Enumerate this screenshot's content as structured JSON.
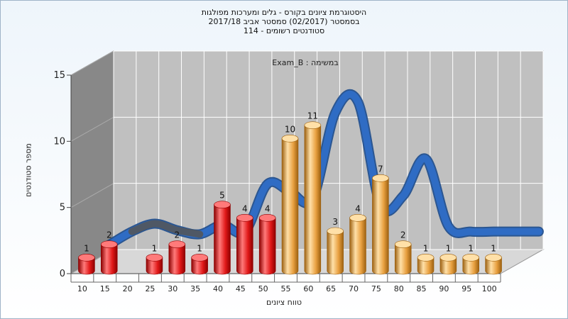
{
  "chart_data": {
    "type": "bar",
    "title_lines": [
      "היסטוגרמת ציונים בקורס - גלים ומערכות מפולגות",
      "בסמסטר  (02/2017)  סמסטר אביב 2017/18",
      "114 - סטודנטים רשומים"
    ],
    "plot_label": "Exam_B : במשימה",
    "xlabel": "טווח ציונים",
    "ylabel": "מספר סטודנטים",
    "ylim": [
      0,
      15
    ],
    "yticks": [
      0,
      5,
      10,
      15
    ],
    "categories": [
      "10",
      "15",
      "20",
      "25",
      "30",
      "35",
      "40",
      "45",
      "50",
      "55",
      "60",
      "65",
      "70",
      "75",
      "80",
      "85",
      "90",
      "95",
      "100"
    ],
    "values": [
      1,
      2,
      0,
      1,
      2,
      1,
      5,
      4,
      4,
      10,
      11,
      3,
      4,
      7,
      2,
      1,
      1,
      1,
      1
    ],
    "bar_groups": [
      {
        "from": 0,
        "to": 8,
        "color": "#e01818",
        "light": "#ff7a7a",
        "dark": "#8c0000"
      },
      {
        "from": 9,
        "to": 18,
        "color": "#e8a040",
        "light": "#ffe0a8",
        "dark": "#9c6010"
      }
    ],
    "curve": {
      "values": [
        1,
        2,
        2.6,
        2.1,
        1.8,
        2.5,
        2.0,
        5.6,
        5.0,
        4.5,
        11.0,
        11.8,
        4.0,
        4.7,
        7.5,
        2.4,
        2.0,
        2.0,
        2.0,
        2.0
      ],
      "color": "#2f6cc4",
      "shade_color": "#555555"
    },
    "grid": true,
    "colors": {
      "wall_back": "#c0c0c0",
      "wall_side": "#888888",
      "floor": "#d8d8d8",
      "grid": "#ffffff"
    }
  }
}
